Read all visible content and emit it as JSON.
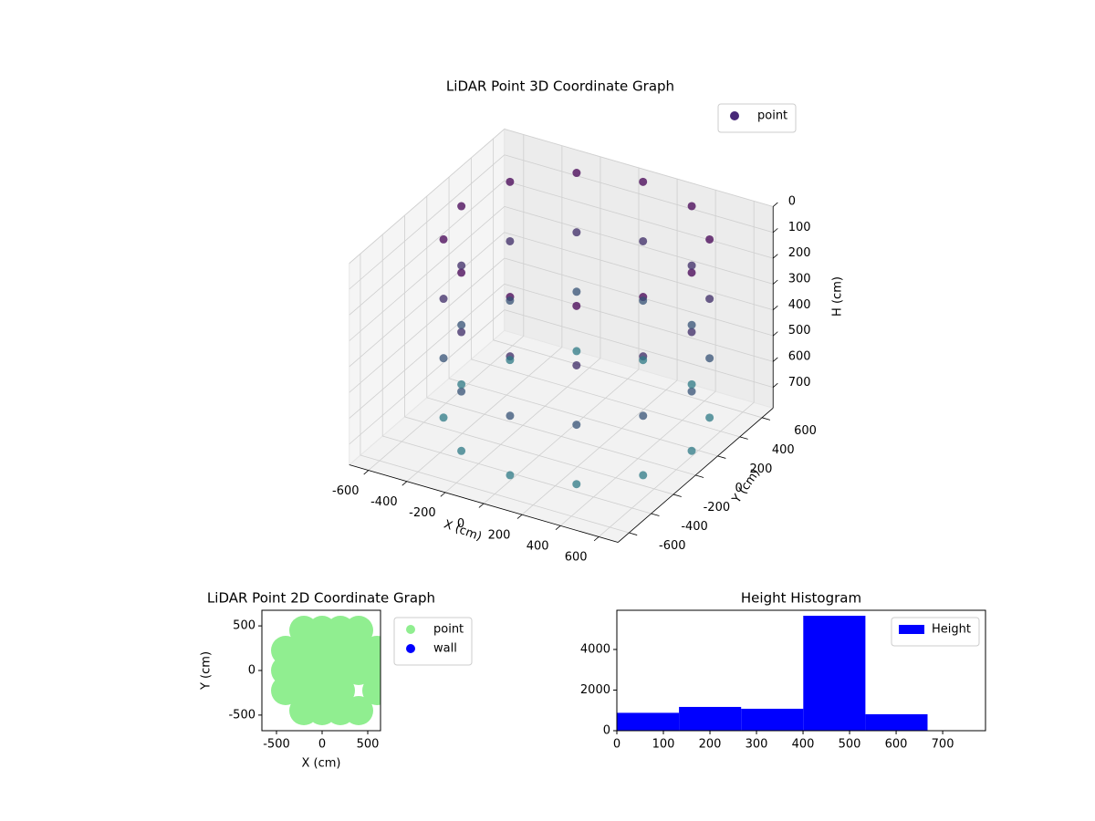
{
  "chart_data": [
    {
      "type": "scatter3d",
      "title": "LiDAR Point 3D Coordinate Graph",
      "xlabel": "X (cm)",
      "ylabel": "Y (cm)",
      "zlabel": "H (cm)",
      "xlim": [
        -700,
        700
      ],
      "ylim": [
        -700,
        700
      ],
      "zlim": [
        0,
        780
      ],
      "zaxis_inverted": true,
      "xticks": [
        -600,
        -400,
        -200,
        0,
        200,
        400,
        600
      ],
      "yticks": [
        -600,
        -400,
        -200,
        0,
        200,
        400,
        600
      ],
      "zticks": [
        0,
        100,
        200,
        300,
        400,
        500,
        600,
        700
      ],
      "grid": true,
      "legend": "upper right",
      "series": [
        {
          "name": "point",
          "color": "#482878",
          "colormap": [
            "#440154",
            "#2a8a8c"
          ],
          "x": [
            680,
            600,
            380,
            80,
            -220,
            -440,
            -520,
            -440,
            -220,
            80,
            380,
            600,
            680,
            600,
            380,
            80,
            -220,
            -440,
            -520,
            -440,
            -220,
            80,
            380,
            600,
            680,
            600,
            380,
            80,
            -220,
            -440,
            -520,
            -440,
            -220,
            80,
            380,
            600,
            680,
            600,
            380,
            80,
            -220,
            -440,
            -520,
            -440,
            -220,
            80,
            380,
            600
          ],
          "y": [
            0,
            300,
            520,
            600,
            520,
            300,
            0,
            -300,
            -520,
            -600,
            -520,
            -300,
            0,
            300,
            520,
            600,
            520,
            300,
            0,
            -300,
            -520,
            -600,
            -520,
            -300,
            0,
            300,
            520,
            600,
            520,
            300,
            0,
            -300,
            -520,
            -600,
            -520,
            -300,
            0,
            300,
            520,
            600,
            520,
            300,
            0,
            -300,
            -520,
            -600,
            -520,
            -300
          ],
          "h": [
            0,
            0,
            0,
            0,
            0,
            0,
            0,
            0,
            0,
            0,
            0,
            0,
            230,
            230,
            230,
            230,
            230,
            230,
            230,
            230,
            230,
            230,
            230,
            230,
            460,
            460,
            460,
            460,
            460,
            460,
            460,
            460,
            460,
            460,
            460,
            460,
            690,
            690,
            690,
            690,
            690,
            690,
            690,
            690,
            690,
            690,
            690,
            690
          ]
        }
      ]
    },
    {
      "type": "scatter",
      "title": "LiDAR Point 2D Coordinate Graph",
      "xlabel": "X (cm)",
      "ylabel": "Y (cm)",
      "xlim": [
        -660,
        640
      ],
      "ylim": [
        -675,
        675
      ],
      "xticks": [
        -500,
        0,
        500
      ],
      "yticks": [
        -500,
        0,
        500
      ],
      "legend": "outside right",
      "series": [
        {
          "name": "point",
          "color": "#90ee90",
          "x": [
            -400,
            -400,
            -400,
            -200,
            -200,
            -200,
            -200,
            -200,
            0,
            0,
            0,
            0,
            0,
            200,
            200,
            200,
            200,
            200,
            400,
            400,
            400,
            400,
            600,
            600,
            600
          ],
          "y": [
            -225,
            0,
            225,
            -450,
            -225,
            0,
            225,
            450,
            -450,
            -225,
            0,
            225,
            450,
            -450,
            -225,
            0,
            225,
            450,
            -450,
            0,
            225,
            450,
            -225,
            0,
            225
          ]
        },
        {
          "name": "wall",
          "color": "#0000ff",
          "x": [],
          "y": []
        }
      ]
    },
    {
      "type": "histogram",
      "title": "Height Histogram",
      "xlim": [
        0,
        792
      ],
      "ylim": [
        0,
        5930
      ],
      "xticks": [
        0,
        100,
        200,
        300,
        400,
        500,
        600,
        700
      ],
      "yticks": [
        0,
        2000,
        4000
      ],
      "legend": "upper right",
      "bins": [
        0,
        133.5,
        267,
        400.5,
        534,
        667.5
      ],
      "series": [
        {
          "name": "Height",
          "color": "#0000ff",
          "values": [
            880,
            1170,
            1080,
            5660,
            810
          ]
        }
      ]
    }
  ]
}
